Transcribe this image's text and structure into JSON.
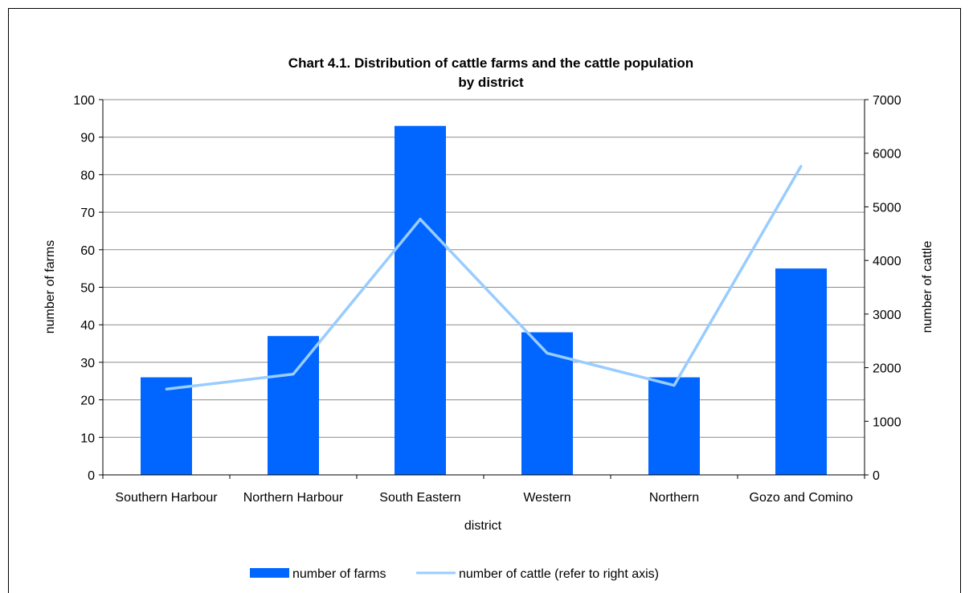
{
  "chart_data": {
    "type": "bar",
    "title": "Chart 4.1.  Distribution of cattle farms and the cattle population",
    "subtitle": "by district",
    "xlabel": "district",
    "ylabel": "number of farms",
    "y2label": "number of cattle",
    "categories": [
      "Southern Harbour",
      "Northern Harbour",
      "South Eastern",
      "Western",
      "Northern",
      "Gozo and Comino"
    ],
    "ylim": [
      0,
      100
    ],
    "y2lim": [
      0,
      7000
    ],
    "yticks": [
      "0",
      "10",
      "20",
      "30",
      "40",
      "50",
      "60",
      "70",
      "80",
      "90",
      "100"
    ],
    "y2ticks": [
      "0",
      "1000",
      "2000",
      "3000",
      "4000",
      "5000",
      "6000",
      "7000"
    ],
    "grid": true,
    "legend_position": "bottom",
    "series": [
      {
        "name": "number of farms",
        "type": "bar",
        "axis": "left",
        "color": "#0066ff",
        "values": [
          26,
          37,
          93,
          38,
          26,
          55
        ]
      },
      {
        "name": "number of cattle (refer to right axis)",
        "type": "line",
        "axis": "right",
        "color": "#99ccff",
        "values": [
          1600,
          1880,
          4770,
          2270,
          1670,
          5760
        ]
      }
    ]
  }
}
